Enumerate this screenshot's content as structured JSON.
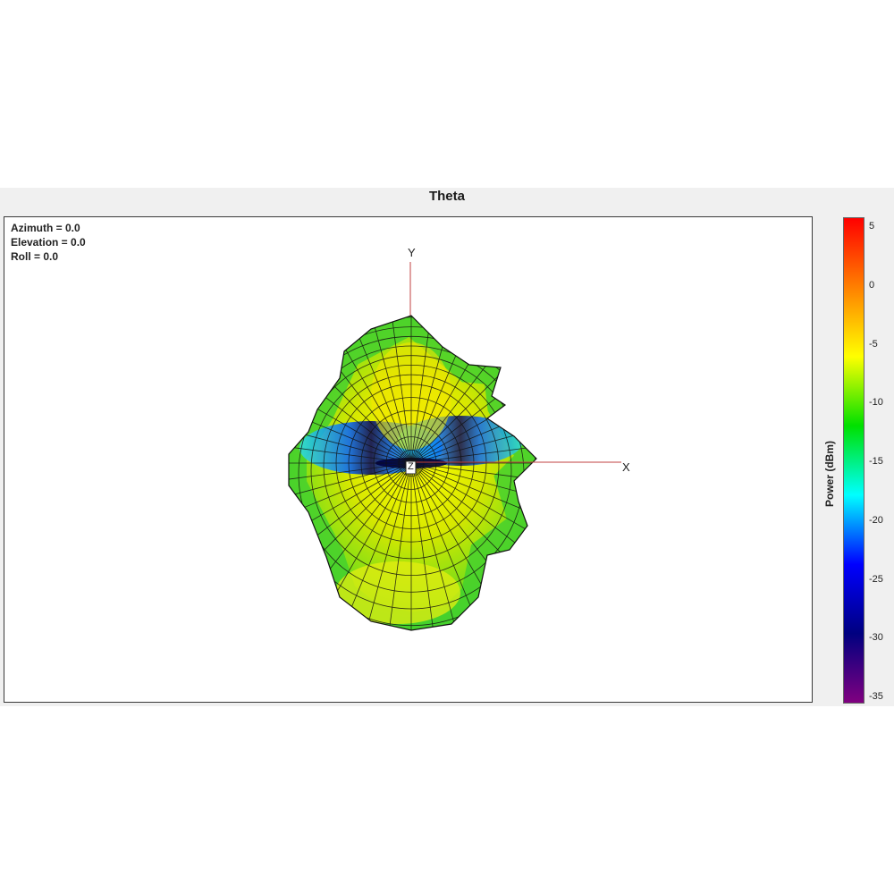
{
  "window": {
    "title": "Theta"
  },
  "view": {
    "azimuth": "Azimuth = 0.0",
    "elevation": "Elevation = 0.0",
    "roll": "Roll = 0.0"
  },
  "axes": {
    "x": "X",
    "y": "Y",
    "z": "Z"
  },
  "colorbar": {
    "label": "Power  (dBm)",
    "ticks": [
      "5",
      "0",
      "-5",
      "-10",
      "-15",
      "-20",
      "-25",
      "-30",
      "-35"
    ],
    "colors": [
      "#ff0000",
      "#ff8000",
      "#ffff00",
      "#00e000",
      "#00ffff",
      "#0000ff",
      "#000080",
      "#800080"
    ]
  },
  "pattern_colors": {
    "high": "#f0f000",
    "mid": "#55dd11",
    "low": "#0050ff",
    "mesh": "#111111"
  }
}
